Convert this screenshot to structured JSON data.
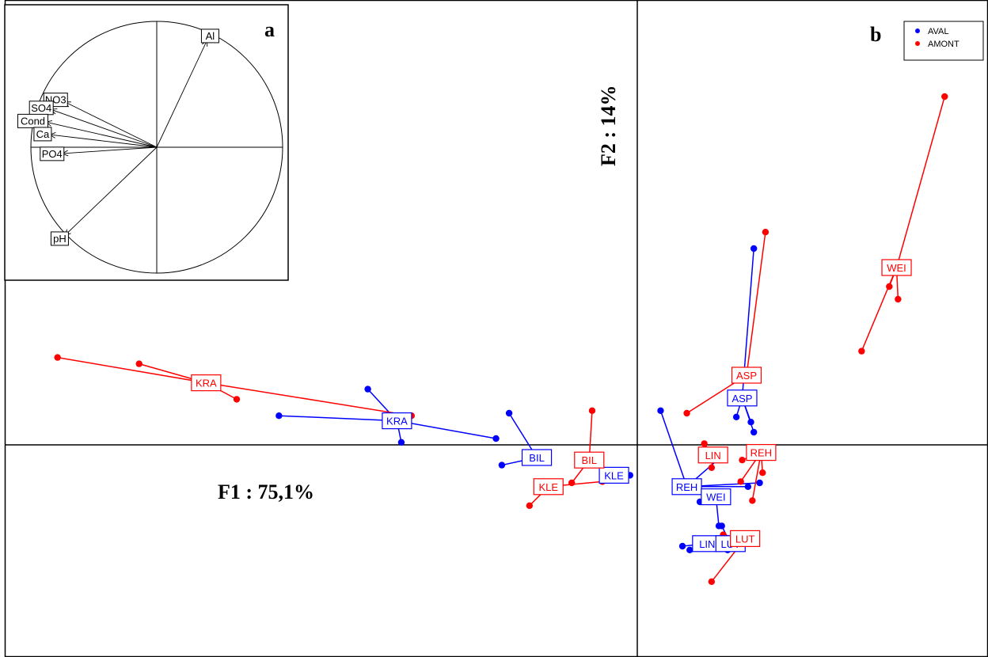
{
  "chart_data": [
    {
      "panel": "a",
      "type": "correlation-circle",
      "variables": [
        {
          "name": "Al",
          "x": 0.4,
          "y": 0.85
        },
        {
          "name": "NO3",
          "x": -0.73,
          "y": 0.36
        },
        {
          "name": "SO4",
          "x": -0.84,
          "y": 0.3
        },
        {
          "name": "Cond",
          "x": -0.88,
          "y": 0.2
        },
        {
          "name": "Ca",
          "x": -0.85,
          "y": 0.1
        },
        {
          "name": "PO4",
          "x": -0.75,
          "y": -0.05
        },
        {
          "name": "pH",
          "x": -0.73,
          "y": -0.7
        }
      ]
    },
    {
      "panel": "b",
      "type": "scatter",
      "xlabel": "F1 : 75,1%",
      "ylabel": "F2 : 14%",
      "legend": {
        "position": "top-right",
        "entries": [
          {
            "name": "AVAL",
            "color": "#0000ff"
          },
          {
            "name": "AMONT",
            "color": "#ff0000"
          }
        ]
      },
      "series": [
        {
          "name": "AVAL",
          "color": "#0000ff",
          "groups": [
            {
              "label": "KRA",
              "center": [
                -1.65,
                0.19
              ],
              "points": [
                [
                  -2.46,
                  0.23
                ],
                [
                  -1.85,
                  0.44
                ],
                [
                  -0.97,
                  0.05
                ],
                [
                  -1.62,
                  0.02
                ]
              ]
            },
            {
              "label": "BIL",
              "center": [
                -0.69,
                -0.1
              ],
              "points": [
                [
                  -0.88,
                  0.25
                ],
                [
                  -0.93,
                  -0.16
                ]
              ]
            },
            {
              "label": "KLE",
              "center": [
                -0.16,
                -0.24
              ],
              "points": [
                [
                  -0.05,
                  -0.24
                ]
              ]
            },
            {
              "label": "ASP",
              "center": [
                0.72,
                0.37
              ],
              "points": [
                [
                  0.8,
                  1.55
                ],
                [
                  0.68,
                  0.22
                ],
                [
                  0.78,
                  0.18
                ],
                [
                  0.8,
                  0.1
                ]
              ]
            },
            {
              "label": "REH",
              "center": [
                0.34,
                -0.33
              ],
              "points": [
                [
                  0.16,
                  0.27
                ],
                [
                  0.59,
                  -0.08
                ],
                [
                  0.76,
                  -0.33
                ],
                [
                  0.84,
                  -0.3
                ]
              ]
            },
            {
              "label": "WEI",
              "center": [
                0.54,
                -0.41
              ],
              "points": [
                [
                  0.43,
                  -0.45
                ],
                [
                  0.56,
                  -0.64
                ]
              ]
            },
            {
              "label": "LIN",
              "center": [
                0.48,
                -0.78
              ],
              "points": [
                [
                  0.31,
                  -0.8
                ],
                [
                  0.36,
                  -0.83
                ],
                [
                  0.62,
                  -0.83
                ]
              ]
            },
            {
              "label": "LUT",
              "center": [
                0.64,
                -0.78
              ],
              "points": [
                [
                  0.58,
                  -0.64
                ]
              ]
            }
          ]
        },
        {
          "name": "AMONT",
          "color": "#ff0000",
          "groups": [
            {
              "label": "KRA",
              "center": [
                -2.96,
                0.49
              ],
              "points": [
                [
                  -3.98,
                  0.69
                ],
                [
                  -3.42,
                  0.64
                ],
                [
                  -2.75,
                  0.36
                ],
                [
                  -1.55,
                  0.23
                ]
              ]
            },
            {
              "label": "BIL",
              "center": [
                -0.33,
                -0.12
              ],
              "points": [
                [
                  -0.31,
                  0.27
                ],
                [
                  -0.45,
                  -0.3
                ]
              ]
            },
            {
              "label": "KLE",
              "center": [
                -0.61,
                -0.33
              ],
              "points": [
                [
                  -0.74,
                  -0.48
                ],
                [
                  -0.24,
                  -0.29
                ]
              ]
            },
            {
              "label": "ASP",
              "center": [
                0.75,
                0.55
              ],
              "points": [
                [
                  0.88,
                  1.68
                ],
                [
                  0.81,
                  0.53
                ],
                [
                  0.34,
                  0.25
                ]
              ]
            },
            {
              "label": "REH",
              "center": [
                0.85,
                -0.06
              ],
              "points": [
                [
                  0.71,
                  -0.29
                ],
                [
                  0.79,
                  -0.44
                ],
                [
                  0.86,
                  -0.22
                ],
                [
                  0.72,
                  -0.12
                ]
              ]
            },
            {
              "label": "LIN",
              "center": [
                0.52,
                -0.08
              ],
              "points": [
                [
                  0.46,
                  0.01
                ],
                [
                  0.51,
                  -0.18
                ]
              ]
            },
            {
              "label": "LUT",
              "center": [
                0.74,
                -0.74
              ],
              "points": [
                [
                  0.51,
                  -1.08
                ],
                [
                  0.59,
                  -0.71
                ],
                [
                  0.73,
                  -0.78
                ],
                [
                  0.79,
                  -0.77
                ]
              ]
            },
            {
              "label": "WEI",
              "center": [
                1.78,
                1.4
              ],
              "points": [
                [
                  2.11,
                  2.75
                ],
                [
                  1.54,
                  0.74
                ],
                [
                  1.73,
                  1.25
                ],
                [
                  1.79,
                  1.15
                ]
              ]
            }
          ]
        }
      ]
    }
  ],
  "labels": {
    "panel_a": "a",
    "panel_b": "b",
    "xlabel": "F1 : 75,1%",
    "ylabel": "F2 : 14%",
    "legend_aval": "AVAL",
    "legend_amont": "AMONT"
  }
}
